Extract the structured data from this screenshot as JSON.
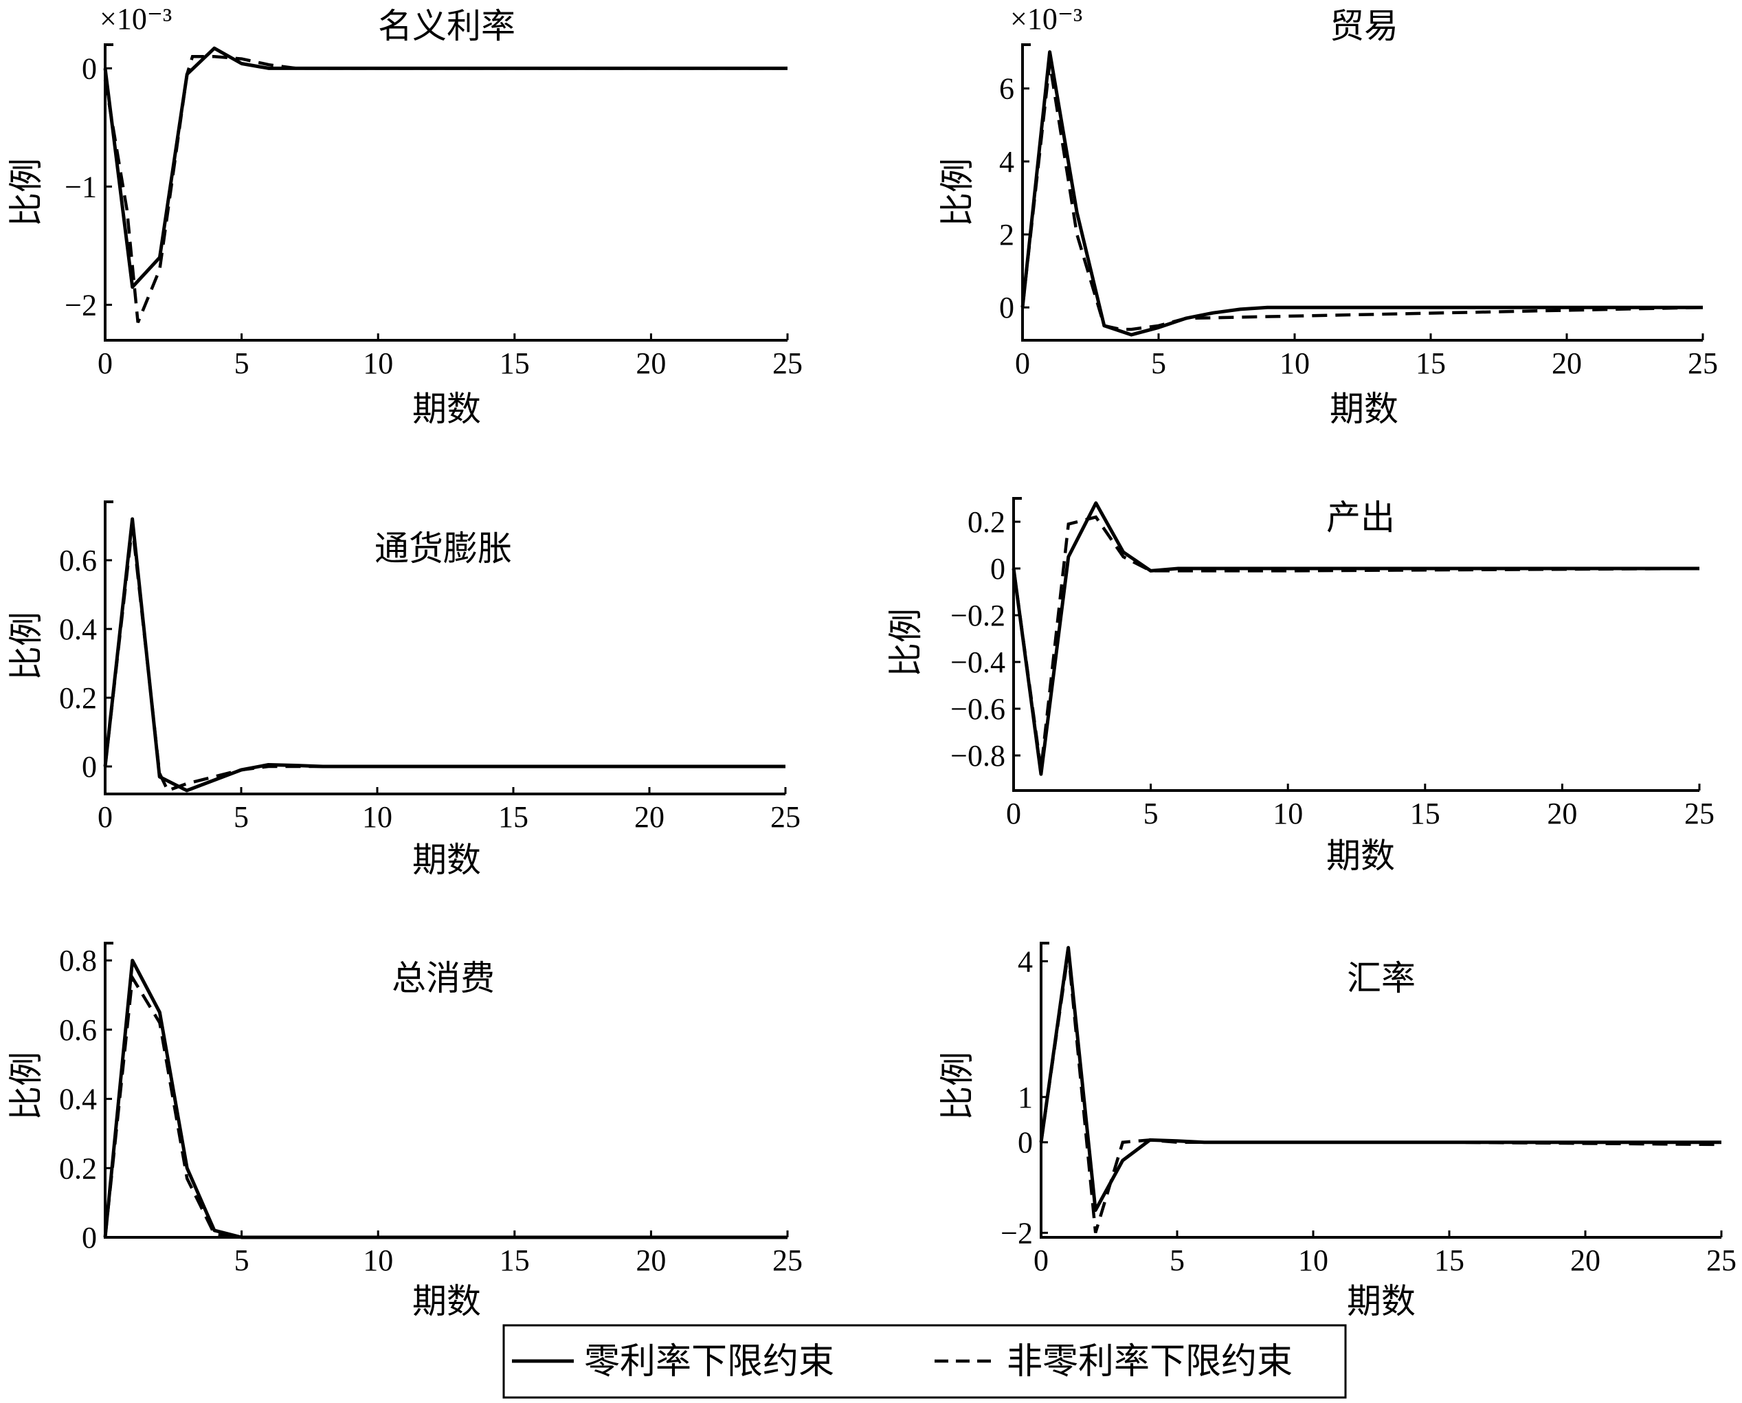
{
  "legend": {
    "solid_label": "零利率下限约束",
    "dashed_label": "非零利率下限约束"
  },
  "chart_data": [
    {
      "type": "line",
      "title": "名义利率",
      "xlabel": "期数",
      "ylabel": "比例",
      "scale_note": "×10⁻³",
      "xlim": [
        0,
        25
      ],
      "ylim": [
        -2.3,
        0.2
      ],
      "xticks": [
        0,
        5,
        10,
        15,
        20,
        25
      ],
      "yticks": [
        0,
        -1,
        -2
      ],
      "series": [
        {
          "name": "零利率下限约束",
          "style": "solid",
          "x": [
            0,
            1,
            2,
            3,
            4,
            5,
            6,
            7,
            8,
            25
          ],
          "y": [
            0,
            -1.85,
            -1.6,
            -0.05,
            0.17,
            0.04,
            0,
            0,
            0,
            0
          ]
        },
        {
          "name": "非零利率下限约束",
          "style": "dashed",
          "x": [
            0,
            0.8,
            1.2,
            2,
            3,
            3.2,
            4,
            5,
            6,
            7,
            25
          ],
          "y": [
            -0.1,
            -1.2,
            -2.15,
            -1.7,
            -0.05,
            0.1,
            0.1,
            0.08,
            0.03,
            0,
            0
          ]
        }
      ]
    },
    {
      "type": "line",
      "title": "贸易",
      "xlabel": "期数",
      "ylabel": "比例",
      "scale_note": "×10⁻³",
      "xlim": [
        0,
        25
      ],
      "ylim": [
        -0.9,
        7.2
      ],
      "xticks": [
        0,
        5,
        10,
        15,
        20,
        25
      ],
      "yticks": [
        0,
        2,
        4,
        6
      ],
      "series": [
        {
          "name": "零利率下限约束",
          "style": "solid",
          "x": [
            0,
            1,
            2,
            3,
            4,
            5,
            6,
            7,
            8,
            9,
            10,
            25
          ],
          "y": [
            0,
            7,
            2.6,
            -0.5,
            -0.75,
            -0.55,
            -0.3,
            -0.15,
            -0.05,
            0,
            0,
            0
          ]
        },
        {
          "name": "非零利率下限约束",
          "style": "dashed",
          "x": [
            0,
            1,
            2,
            3,
            3.6,
            4,
            5,
            6,
            25
          ],
          "y": [
            0,
            6.7,
            2,
            -0.5,
            -0.6,
            -0.6,
            -0.5,
            -0.3,
            0
          ]
        }
      ]
    },
    {
      "type": "line",
      "title": "通货膨胀",
      "xlabel": "期数",
      "ylabel": "比例",
      "xlim": [
        0,
        25
      ],
      "ylim": [
        -0.08,
        0.77
      ],
      "xticks": [
        0,
        5,
        10,
        15,
        20,
        25
      ],
      "yticks": [
        0,
        0.2,
        0.4,
        0.6
      ],
      "series": [
        {
          "name": "零利率下限约束",
          "style": "solid",
          "x": [
            0,
            1,
            2,
            3,
            4,
            5,
            6,
            7,
            8,
            25
          ],
          "y": [
            0,
            0.72,
            -0.03,
            -0.07,
            -0.04,
            -0.01,
            0.005,
            0.003,
            0,
            0
          ]
        },
        {
          "name": "非零利率下限约束",
          "style": "dashed",
          "x": [
            0,
            1,
            2,
            2.3,
            3,
            4,
            5,
            6,
            7,
            25
          ],
          "y": [
            0,
            0.7,
            -0.02,
            -0.07,
            -0.05,
            -0.03,
            -0.01,
            0,
            0,
            0
          ]
        }
      ]
    },
    {
      "type": "line",
      "title": "产出",
      "xlabel": "期数",
      "ylabel": "比例",
      "xlim": [
        0,
        25
      ],
      "ylim": [
        -0.95,
        0.3
      ],
      "xticks": [
        0,
        5,
        10,
        15,
        20,
        25
      ],
      "yticks": [
        0.2,
        0,
        -0.2,
        -0.4,
        -0.6,
        -0.8
      ],
      "series": [
        {
          "name": "零利率下限约束",
          "style": "solid",
          "x": [
            0,
            1,
            2,
            3,
            4,
            5,
            6,
            25
          ],
          "y": [
            0,
            -0.88,
            0.05,
            0.28,
            0.07,
            -0.01,
            0,
            0
          ]
        },
        {
          "name": "非零利率下限约束",
          "style": "dashed",
          "x": [
            0,
            1,
            2,
            3,
            4,
            5,
            6,
            10,
            25
          ],
          "y": [
            0,
            -0.86,
            0.19,
            0.22,
            0.05,
            -0.01,
            -0.01,
            -0.01,
            0
          ]
        }
      ]
    },
    {
      "type": "line",
      "title": "总消费",
      "xlabel": "期数",
      "ylabel": "比例",
      "xlim": [
        0,
        25
      ],
      "ylim": [
        0,
        0.85
      ],
      "xticks": [
        5,
        10,
        15,
        20,
        25
      ],
      "yticks": [
        0,
        0.2,
        0.4,
        0.6,
        0.8
      ],
      "series": [
        {
          "name": "零利率下限约束",
          "style": "solid",
          "x": [
            0,
            1,
            2,
            3,
            4,
            5,
            6,
            7,
            25
          ],
          "y": [
            0,
            0.8,
            0.65,
            0.2,
            0.02,
            0,
            0,
            0,
            0
          ]
        },
        {
          "name": "非零利率下限约束",
          "style": "dashed",
          "x": [
            0,
            1,
            2,
            3,
            4,
            5,
            6,
            25
          ],
          "y": [
            0,
            0.75,
            0.62,
            0.17,
            0.01,
            0,
            0,
            0
          ]
        }
      ]
    },
    {
      "type": "line",
      "title": "汇率",
      "xlabel": "期数",
      "ylabel": "比例",
      "xlim": [
        0,
        25
      ],
      "ylim": [
        -2.1,
        4.4
      ],
      "xticks": [
        0,
        5,
        10,
        15,
        20,
        25
      ],
      "yticks": [
        4,
        1,
        0,
        -2
      ],
      "series": [
        {
          "name": "零利率下限约束",
          "style": "solid",
          "x": [
            0,
            1,
            2,
            3,
            4,
            5,
            6,
            7,
            25
          ],
          "y": [
            0,
            4.3,
            -1.5,
            -0.4,
            0.05,
            0.03,
            0,
            0,
            0
          ]
        },
        {
          "name": "非零利率下限约束",
          "style": "dashed",
          "x": [
            0,
            1,
            2,
            3,
            4,
            5,
            6,
            15,
            25
          ],
          "y": [
            0,
            4.2,
            -2,
            0,
            0.05,
            0,
            0,
            0,
            -0.05
          ]
        }
      ]
    }
  ]
}
